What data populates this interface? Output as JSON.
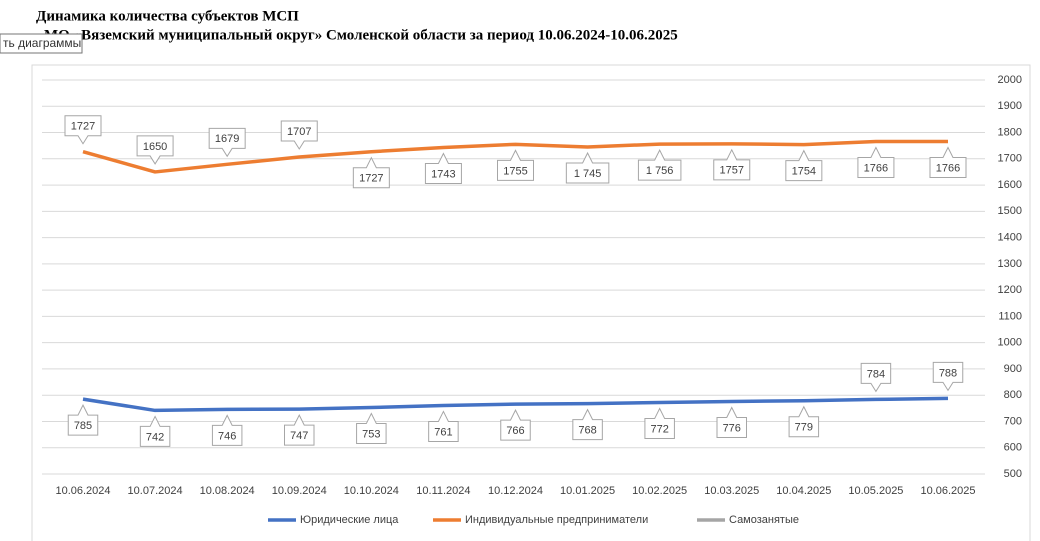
{
  "title": "Динамика количества субъектов МСП",
  "subtitle": "МО «Вяземский муниципальный округ» Смоленской области за период 10.06.2024-10.06.2025",
  "tooltip": "ть диаграммы",
  "chart_data": {
    "type": "line",
    "categories": [
      "10.06.2024",
      "10.07.2024",
      "10.08.2024",
      "10.09.2024",
      "10.10.2024",
      "10.11.2024",
      "10.12.2024",
      "10.01.2025",
      "10.02.2025",
      "10.03.2025",
      "10.04.2025",
      "10.05.2025",
      "10.06.2025"
    ],
    "series": [
      {
        "name": "Юридические лица",
        "color": "#4472c4",
        "values": [
          785,
          742,
          746,
          747,
          753,
          761,
          766,
          768,
          772,
          776,
          779,
          784,
          788
        ]
      },
      {
        "name": "Индивидуальные предприниматели",
        "color": "#ed7d31",
        "values": [
          1727,
          1650,
          1679,
          1707,
          1727,
          1743,
          1755,
          1745,
          1756,
          1757,
          1754,
          1766,
          1766
        ],
        "value_labels": [
          "1727",
          "1650",
          "1679",
          "1707",
          "1727",
          "1743",
          "1755",
          "1 745",
          "1 756",
          "1757",
          "1754",
          "1766",
          "1766"
        ]
      },
      {
        "name": "Самозанятые",
        "color": "#a5a5a5",
        "values": [
          null,
          null,
          null,
          null,
          null,
          null,
          null,
          null,
          null,
          null,
          null,
          null,
          null
        ]
      }
    ],
    "ylim": [
      500,
      2000
    ],
    "yticks": [
      500,
      600,
      700,
      800,
      900,
      1000,
      1100,
      1200,
      1300,
      1400,
      1500,
      1600,
      1700,
      1800,
      1900,
      2000
    ],
    "grid": true,
    "legend": "bottom"
  }
}
